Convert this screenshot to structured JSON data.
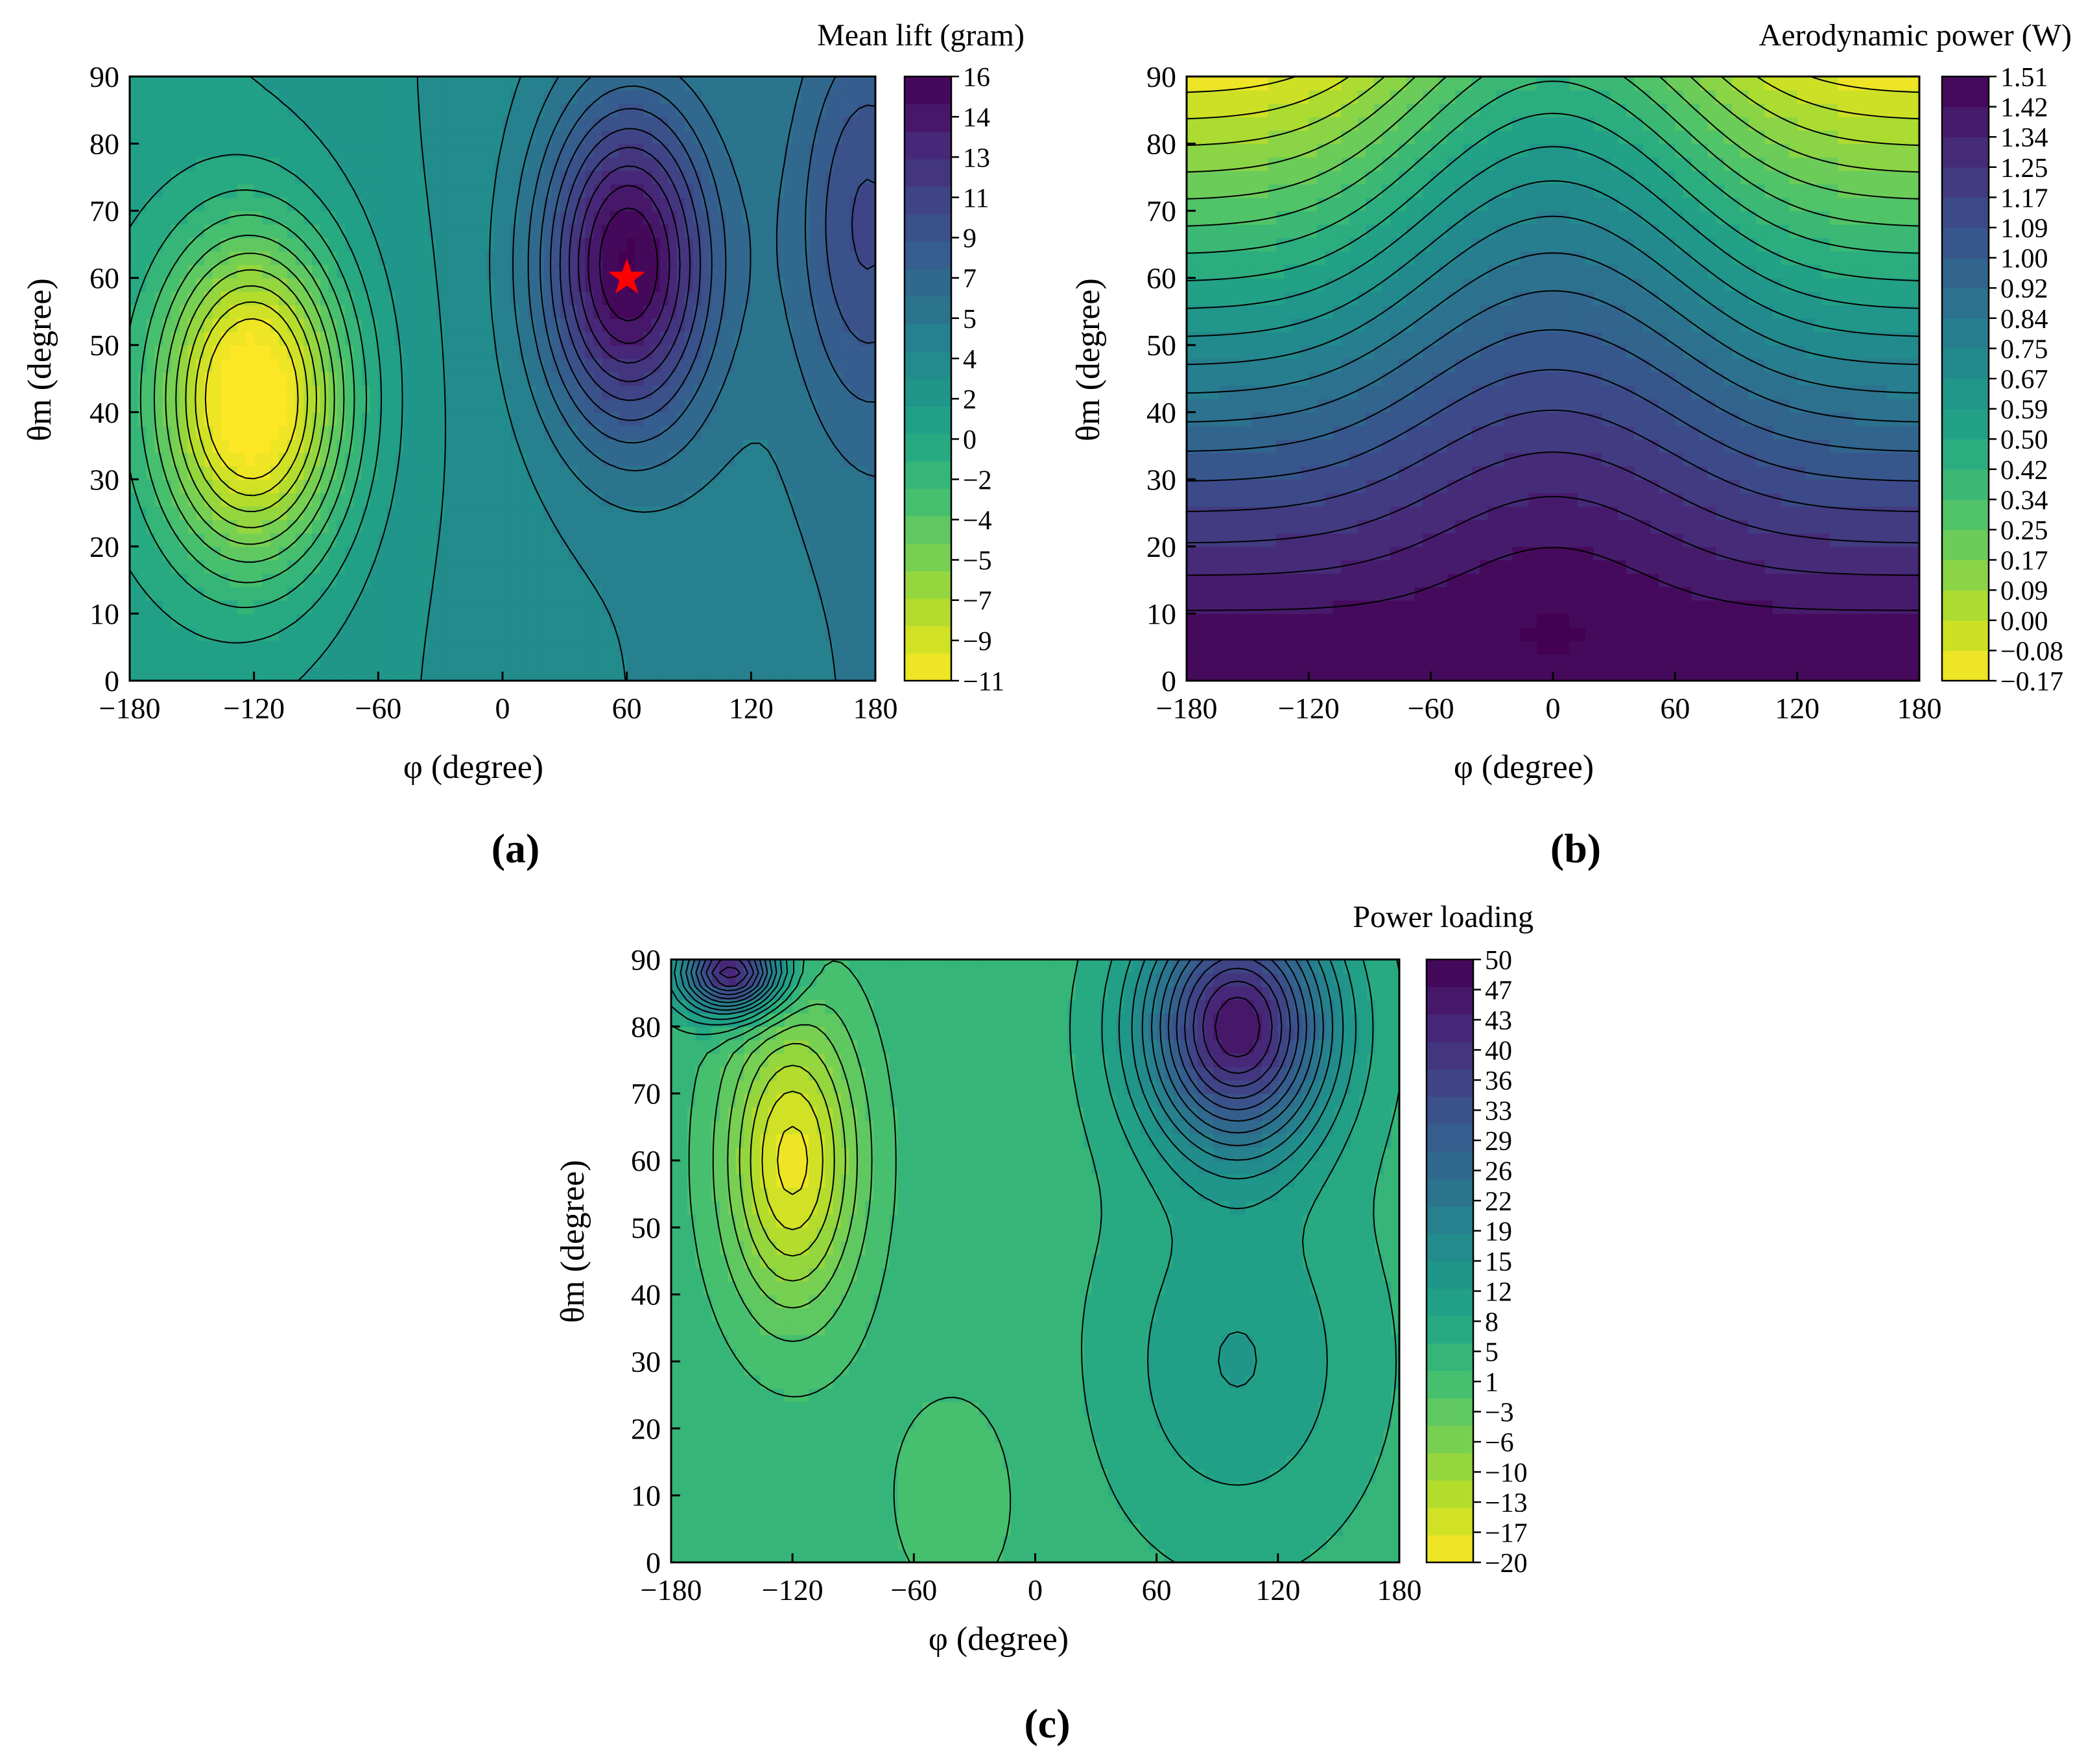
{
  "chart_data": [
    {
      "id": "a",
      "type": "heatmap",
      "style": "filled-contour",
      "panel_label": "(a)",
      "colorbar_title": "Mean lift (gram)",
      "xlabel": "φ (degree)",
      "ylabel": "θm (degree)",
      "xlim": [
        -180,
        180
      ],
      "ylim": [
        0,
        90
      ],
      "xticks": [
        "−180",
        "−120",
        "−60",
        "0",
        "60",
        "120",
        "180"
      ],
      "yticks": [
        "0",
        "10",
        "20",
        "30",
        "40",
        "50",
        "60",
        "70",
        "80",
        "90"
      ],
      "colorbar_ticks": [
        "16",
        "14",
        "13",
        "11",
        "9",
        "7",
        "5",
        "4",
        "2",
        "0",
        "−2",
        "−4",
        "−5",
        "−7",
        "−9",
        "−11"
      ],
      "colorbar_range": [
        -11,
        16
      ],
      "colormap": "viridis",
      "reversed_colormap": true,
      "contour_levels": 22,
      "field": {
        "base": 3.0,
        "bumps": [
          {
            "x": -120,
            "y": 42,
            "amp": -14.5,
            "sx": 45,
            "sy": 24
          },
          {
            "x": 60,
            "y": 62,
            "amp": 12.5,
            "sx": 40,
            "sy": 24
          },
          {
            "x": 175,
            "y": 68,
            "amp": 5.0,
            "sx": 35,
            "sy": 30
          }
        ],
        "tilt": [
          0.012,
          0.0
        ]
      },
      "marker": {
        "x": 60,
        "y": 60,
        "symbol": "star",
        "color": "#ff0000"
      }
    },
    {
      "id": "b",
      "type": "heatmap",
      "style": "filled-contour",
      "panel_label": "(b)",
      "colorbar_title": "Aerodynamic power (W)",
      "xlabel": "φ (degree)",
      "ylabel": "θm (degree)",
      "xlim": [
        -180,
        180
      ],
      "ylim": [
        0,
        90
      ],
      "xticks": [
        "−180",
        "−120",
        "−60",
        "0",
        "60",
        "120",
        "180"
      ],
      "yticks": [
        "0",
        "10",
        "20",
        "30",
        "40",
        "50",
        "60",
        "70",
        "80",
        "90"
      ],
      "colorbar_ticks": [
        "1.51",
        "1.42",
        "1.34",
        "1.25",
        "1.17",
        "1.09",
        "1.00",
        "0.92",
        "0.84",
        "0.75",
        "0.67",
        "0.59",
        "0.50",
        "0.42",
        "0.34",
        "0.25",
        "0.17",
        "0.09",
        "0.00",
        "−0.08",
        "−0.17"
      ],
      "colorbar_range": [
        -0.17,
        1.51
      ],
      "colormap": "viridis",
      "reversed_colormap": true,
      "contour_levels": 20,
      "field": {
        "base": 1.46,
        "bumps": [
          {
            "x": 0,
            "y": 15,
            "amp": 0.06,
            "sx": 60,
            "sy": 25
          }
        ],
        "falloff": {
          "center_x": 0,
          "x_scale": 85,
          "y_from": 8,
          "y_to": 90,
          "amp": -1.6
        }
      }
    },
    {
      "id": "c",
      "type": "heatmap",
      "style": "filled-contour",
      "panel_label": "(c)",
      "colorbar_title": "Power loading",
      "xlabel": "φ (degree)",
      "ylabel": "θm (degree)",
      "xlim": [
        -180,
        180
      ],
      "ylim": [
        0,
        90
      ],
      "xticks": [
        "−180",
        "−120",
        "−60",
        "0",
        "60",
        "120",
        "180"
      ],
      "yticks": [
        "0",
        "10",
        "20",
        "30",
        "40",
        "50",
        "60",
        "70",
        "80",
        "90"
      ],
      "colorbar_ticks": [
        "50",
        "47",
        "43",
        "40",
        "36",
        "33",
        "29",
        "26",
        "22",
        "19",
        "15",
        "12",
        "8",
        "5",
        "1",
        "−3",
        "−6",
        "−10",
        "−13",
        "−17",
        "−20"
      ],
      "colorbar_range": [
        -20,
        50
      ],
      "colormap": "viridis",
      "reversed_colormap": true,
      "contour_levels": 22,
      "field": {
        "base": 4.0,
        "bumps": [
          {
            "x": -120,
            "y": 60,
            "amp": -22,
            "sx": 32,
            "sy": 22
          },
          {
            "x": 100,
            "y": 80,
            "amp": 42,
            "sx": 45,
            "sy": 18
          },
          {
            "x": -150,
            "y": 88,
            "amp": 40,
            "sx": 25,
            "sy": 6
          },
          {
            "x": 100,
            "y": 30,
            "amp": 8,
            "sx": 60,
            "sy": 25
          },
          {
            "x": -40,
            "y": 10,
            "amp": -3,
            "sx": 40,
            "sy": 20
          }
        ],
        "clip_above": 50,
        "clip_below": -20
      }
    }
  ]
}
